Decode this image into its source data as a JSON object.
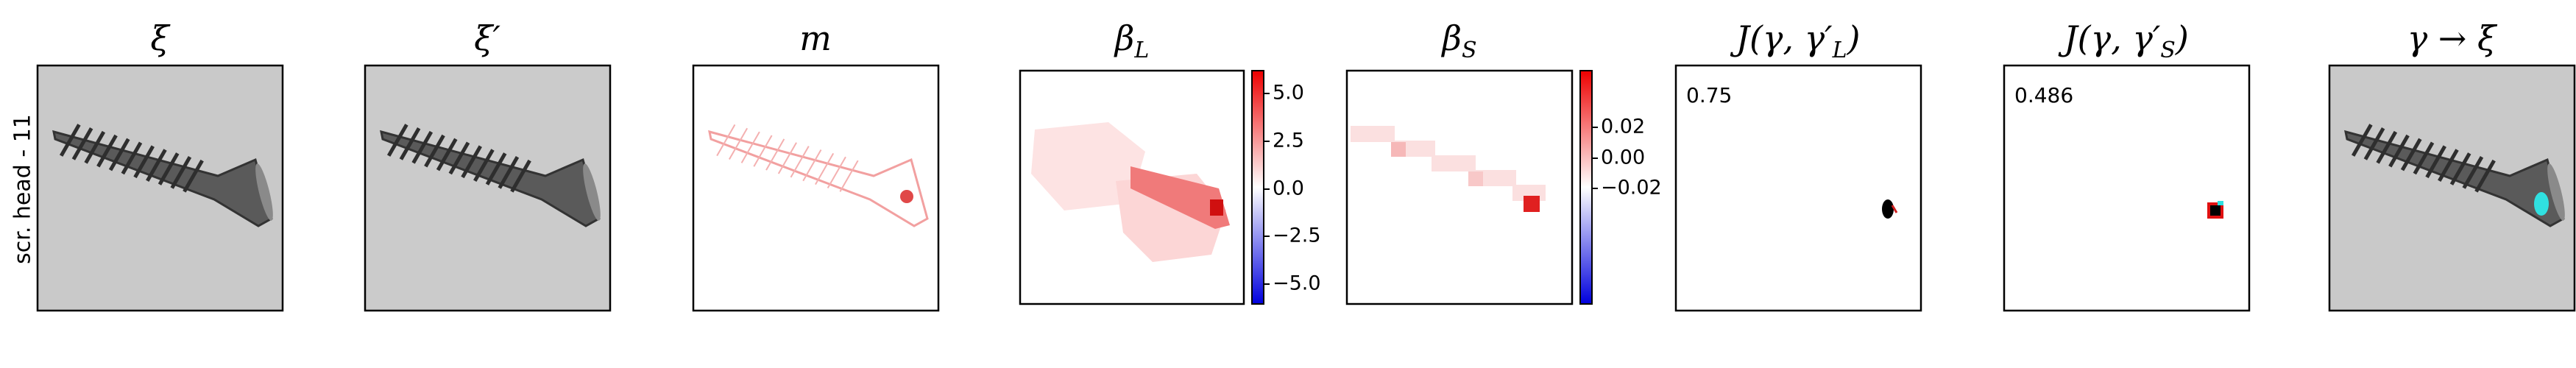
{
  "side_label": "scr. head - 11",
  "panels": [
    {
      "title": {
        "main": "ξ"
      }
    },
    {
      "title": {
        "main": "ξ′"
      }
    },
    {
      "title": {
        "main": "m"
      }
    },
    {
      "title": {
        "main": "β",
        "sub": "L"
      },
      "colorbar_ticks": [
        "5.0",
        "2.5",
        "0.0",
        "−2.5",
        "−5.0"
      ]
    },
    {
      "title": {
        "main": "β",
        "sub": "S"
      },
      "colorbar_ticks": [
        "0.02",
        "0.00",
        "−0.02"
      ]
    },
    {
      "title": {
        "main": "J(γ, γ′",
        "sub": "L",
        "end": ")"
      },
      "note": "0.75"
    },
    {
      "title": {
        "main": "J(γ, γ′",
        "sub": "S",
        "end": ")"
      },
      "note": "0.486"
    },
    {
      "title": {
        "main": "γ → ξ"
      }
    }
  ]
}
